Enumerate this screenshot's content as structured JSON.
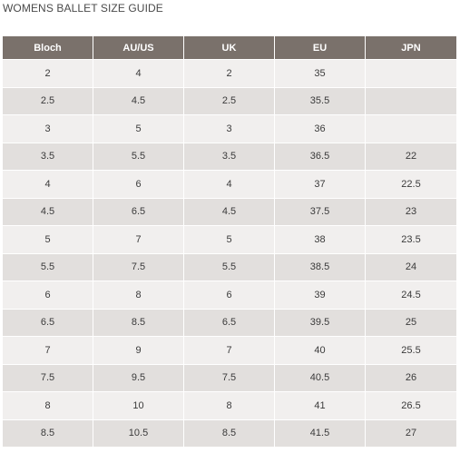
{
  "title": "WOMENS BALLET SIZE GUIDE",
  "columns": [
    "Bloch",
    "AU/US",
    "UK",
    "EU",
    "JPN"
  ],
  "rows": [
    [
      "2",
      "4",
      "2",
      "35",
      ""
    ],
    [
      "2.5",
      "4.5",
      "2.5",
      "35.5",
      ""
    ],
    [
      "3",
      "5",
      "3",
      "36",
      ""
    ],
    [
      "3.5",
      "5.5",
      "3.5",
      "36.5",
      "22"
    ],
    [
      "4",
      "6",
      "4",
      "37",
      "22.5"
    ],
    [
      "4.5",
      "6.5",
      "4.5",
      "37.5",
      "23"
    ],
    [
      "5",
      "7",
      "5",
      "38",
      "23.5"
    ],
    [
      "5.5",
      "7.5",
      "5.5",
      "38.5",
      "24"
    ],
    [
      "6",
      "8",
      "6",
      "39",
      "24.5"
    ],
    [
      "6.5",
      "8.5",
      "6.5",
      "39.5",
      "25"
    ],
    [
      "7",
      "9",
      "7",
      "40",
      "25.5"
    ],
    [
      "7.5",
      "9.5",
      "7.5",
      "40.5",
      "26"
    ],
    [
      "8",
      "10",
      "8",
      "41",
      "26.5"
    ],
    [
      "8.5",
      "10.5",
      "8.5",
      "41.5",
      "27"
    ]
  ],
  "colors": {
    "header_bg": "#7a716b",
    "row_light": "#f1efee",
    "row_dark": "#e2dfdd"
  }
}
